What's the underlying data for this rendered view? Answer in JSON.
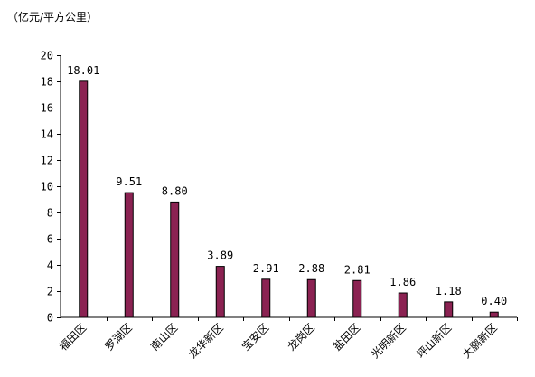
{
  "chart_data": {
    "type": "bar",
    "unit_label": "（亿元/平方公里）",
    "categories": [
      "福田区",
      "罗湖区",
      "南山区",
      "龙华新区",
      "宝安区",
      "龙岗区",
      "盐田区",
      "光明新区",
      "坪山新区",
      "大鹏新区"
    ],
    "values": [
      18.01,
      9.51,
      8.8,
      3.89,
      2.91,
      2.88,
      2.81,
      1.86,
      1.18,
      0.4
    ],
    "value_labels": [
      "18.01",
      "9.51",
      "8.80",
      "3.89",
      "2.91",
      "2.88",
      "2.81",
      "1.86",
      "1.18",
      "0.40"
    ],
    "ylim": [
      0,
      20
    ],
    "yticks": [
      0,
      2,
      4,
      6,
      8,
      10,
      12,
      14,
      16,
      18,
      20
    ],
    "grid": false,
    "legend": "none",
    "bar_color": "#8B2252"
  }
}
